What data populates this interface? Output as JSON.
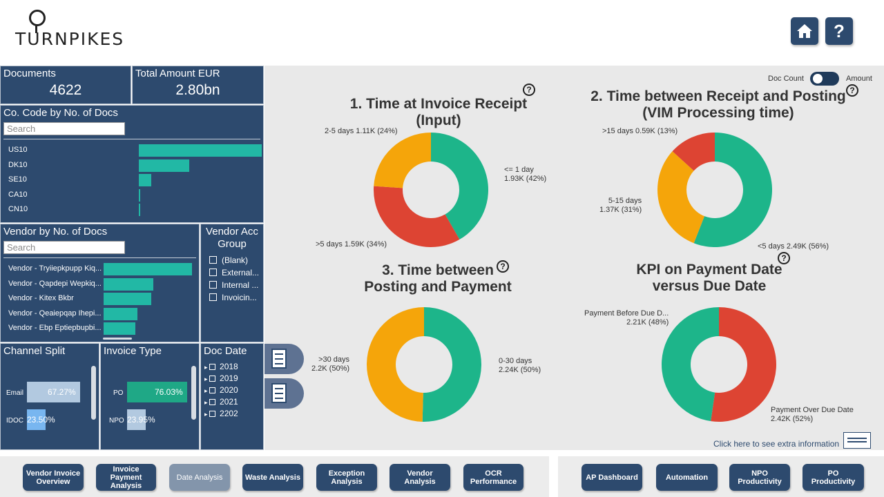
{
  "header": {
    "logo_text": "TURNPIKES",
    "home_icon": "home-icon",
    "help_label": "?"
  },
  "kpis": {
    "documents": {
      "label": "Documents",
      "value": "4622"
    },
    "amount": {
      "label": "Total Amount EUR",
      "value": "2.80bn"
    }
  },
  "co_code": {
    "title": "Co. Code by No. of Docs",
    "search_placeholder": "Search",
    "items": [
      {
        "label": "US10",
        "value": 1.0
      },
      {
        "label": "DK10",
        "value": 0.41
      },
      {
        "label": "SE10",
        "value": 0.1
      },
      {
        "label": "CA10",
        "value": 0.012
      },
      {
        "label": "CN10",
        "value": 0.008
      }
    ]
  },
  "vendor": {
    "title": "Vendor by No. of Docs",
    "search_placeholder": "Search",
    "items": [
      {
        "label": "Vendor - Tryiiepkpupp Kiq...",
        "value": 1.0
      },
      {
        "label": "Vendor - Qapdepi Wepkiq...",
        "value": 0.56
      },
      {
        "label": "Vendor - Kitex Bkbr",
        "value": 0.54
      },
      {
        "label": "Vendor - Qeaiepqap Ihepi...",
        "value": 0.38
      },
      {
        "label": "Vendor - Ebp Eptiepbupbi...",
        "value": 0.36
      }
    ]
  },
  "vendor_acc": {
    "title": "Vendor Acc Group",
    "items": [
      "(Blank)",
      "External...",
      "Internal ...",
      "Invoicin..."
    ]
  },
  "channel": {
    "title": "Channel Split",
    "items": [
      {
        "label": "Email",
        "value_text": "67.27%",
        "value": 67.27
      },
      {
        "label": "IDOC",
        "value_text": "23.50%",
        "value": 23.5
      }
    ]
  },
  "invoice_type": {
    "title": "Invoice Type",
    "items": [
      {
        "label": "PO",
        "value_text": "76.03%",
        "value": 76.03
      },
      {
        "label": "NPO",
        "value_text": "23.95%",
        "value": 23.95
      }
    ]
  },
  "doc_date": {
    "title": "Doc Date",
    "items": [
      "2018",
      "2019",
      "2020",
      "2021",
      "2202"
    ]
  },
  "toggle": {
    "left_label": "Doc Count",
    "right_label": "Amount"
  },
  "chart_data": [
    {
      "type": "pie",
      "title": "1. Time at Invoice Receipt (Input)",
      "title_lines": [
        "1. Time at Invoice Receipt",
        "(Input)"
      ],
      "slices": [
        {
          "label": "<= 1 day",
          "value": 1.93,
          "display": "1.93K (42%)",
          "color": "#1db58a"
        },
        {
          "label": ">5 days",
          "value": 1.59,
          "display": "1.59K (34%)",
          "color": "#dd4433"
        },
        {
          "label": "2-5 days",
          "value": 1.11,
          "display": "1.11K (24%)",
          "color": "#f5a50a"
        }
      ]
    },
    {
      "type": "pie",
      "title": "2. Time between Receipt and Posting (VIM Processing time)",
      "title_lines": [
        "2. Time between Receipt and Posting",
        "(VIM Processing time)"
      ],
      "slices": [
        {
          "label": "<5 days",
          "value": 2.49,
          "display": "2.49K (56%)",
          "color": "#1db58a"
        },
        {
          "label": "5-15 days",
          "value": 1.37,
          "display": "1.37K (31%)",
          "color": "#f5a50a"
        },
        {
          "label": ">15 days",
          "value": 0.59,
          "display": "0.59K (13%)",
          "color": "#dd4433"
        }
      ]
    },
    {
      "type": "pie",
      "title": "3. Time between Posting and Payment",
      "title_lines": [
        "3. Time between",
        "Posting and Payment"
      ],
      "slices": [
        {
          "label": "0-30 days",
          "value": 2.24,
          "display": "2.24K (50%)",
          "color": "#1db58a"
        },
        {
          "label": ">30 days",
          "value": 2.2,
          "display": "2.2K (50%)",
          "color": "#f5a50a"
        }
      ]
    },
    {
      "type": "pie",
      "title": "KPI on Payment Date versus Due Date",
      "title_lines": [
        "KPI on Payment Date",
        "versus Due Date"
      ],
      "slices": [
        {
          "label": "Payment Over Due Date",
          "value": 2.42,
          "display": "2.42K (52%)",
          "color": "#dd4433"
        },
        {
          "label": "Payment Before Due D...",
          "value": 2.21,
          "display": "2.21K (48%)",
          "color": "#1db58a"
        }
      ]
    }
  ],
  "extra_info": "Click here to see extra information",
  "side_tabs": [
    "npo-document-icon",
    "document-icon"
  ],
  "nav_left": [
    {
      "label": "Vendor Invoice Overview"
    },
    {
      "label": "Invoice Payment Analysis"
    },
    {
      "label": "Date Analysis",
      "active": true
    },
    {
      "label": "Waste Analysis"
    },
    {
      "label": "Exception Analysis"
    },
    {
      "label": "Vendor Analysis"
    },
    {
      "label": "OCR Performance"
    }
  ],
  "nav_right": [
    {
      "label": "AP Dashboard"
    },
    {
      "label": "Automation"
    },
    {
      "label": "NPO Productivity"
    },
    {
      "label": "PO Productivity"
    }
  ],
  "colors": {
    "navy": "#2d4a6e",
    "teal": "#22b8a5",
    "green": "#1db58a",
    "red": "#dd4433",
    "orange": "#f5a50a"
  }
}
